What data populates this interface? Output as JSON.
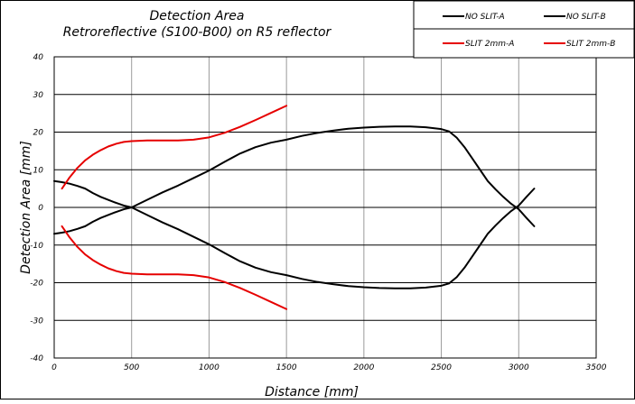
{
  "chart_data": {
    "type": "line",
    "title": "Detection Area",
    "subtitle": "Retroreflective (S100-B00) on R5 reflector",
    "xlabel": "Distance [mm]",
    "ylabel": "Detection Area [mm]",
    "xlim": [
      0,
      3500
    ],
    "ylim": [
      -40,
      40
    ],
    "x_ticks": [
      "0",
      "500",
      "1000",
      "1500",
      "2000",
      "2500",
      "3000",
      "3500"
    ],
    "y_ticks": [
      "40",
      "30",
      "20",
      "10",
      "0",
      "-10",
      "-20",
      "-30",
      "-40"
    ],
    "grid": true,
    "legend_position": "top-right",
    "series": [
      {
        "name": "NO SLIT-A",
        "color": "#000000",
        "x": [
          0,
          50,
          100,
          150,
          200,
          250,
          300,
          350,
          400,
          450,
          500,
          600,
          700,
          800,
          900,
          1000,
          1100,
          1200,
          1300,
          1400,
          1500,
          1600,
          1700,
          1800,
          1900,
          2000,
          2100,
          2200,
          2300,
          2400,
          2500,
          2550,
          2600,
          2650,
          2700,
          2750,
          2800,
          2850,
          2900,
          2950,
          3000,
          3050,
          3100
        ],
        "y": [
          7,
          6.7,
          6.3,
          5.7,
          5,
          3.8,
          2.8,
          2,
          1.2,
          0.5,
          0,
          2,
          4,
          5.8,
          7.8,
          9.8,
          12.1,
          14.3,
          16,
          17.2,
          18,
          19,
          19.8,
          20.4,
          20.9,
          21.2,
          21.4,
          21.5,
          21.5,
          21.3,
          20.8,
          20.2,
          18.5,
          16,
          13,
          10,
          7,
          4.8,
          2.8,
          1,
          -0.5,
          -2.8,
          -5
        ]
      },
      {
        "name": "NO SLIT-B",
        "color": "#000000",
        "x": [
          0,
          50,
          100,
          150,
          200,
          250,
          300,
          350,
          400,
          450,
          500,
          600,
          700,
          800,
          900,
          1000,
          1100,
          1200,
          1300,
          1400,
          1500,
          1600,
          1700,
          1800,
          1900,
          2000,
          2100,
          2200,
          2300,
          2400,
          2500,
          2550,
          2600,
          2650,
          2700,
          2750,
          2800,
          2850,
          2900,
          2950,
          3000,
          3050,
          3100
        ],
        "y": [
          -7,
          -6.7,
          -6.3,
          -5.7,
          -5,
          -3.8,
          -2.8,
          -2,
          -1.2,
          -0.5,
          0,
          -2,
          -4,
          -5.8,
          -7.8,
          -9.8,
          -12.1,
          -14.3,
          -16,
          -17.2,
          -18,
          -19,
          -19.8,
          -20.4,
          -20.9,
          -21.2,
          -21.4,
          -21.5,
          -21.5,
          -21.3,
          -20.8,
          -20.2,
          -18.5,
          -16,
          -13,
          -10,
          -7,
          -4.8,
          -2.8,
          -1,
          0.5,
          2.8,
          5
        ]
      },
      {
        "name": "SLIT 2mm-A",
        "color": "#e60000",
        "x": [
          50,
          100,
          150,
          200,
          250,
          300,
          350,
          400,
          450,
          500,
          600,
          700,
          800,
          900,
          1000,
          1100,
          1200,
          1300,
          1400,
          1500
        ],
        "y": [
          5,
          8,
          10.5,
          12.5,
          14,
          15.2,
          16.2,
          16.9,
          17.4,
          17.6,
          17.8,
          17.8,
          17.8,
          18,
          18.6,
          19.8,
          21.4,
          23.2,
          25.1,
          27
        ]
      },
      {
        "name": "SLIT 2mm-B",
        "color": "#e60000",
        "x": [
          50,
          100,
          150,
          200,
          250,
          300,
          350,
          400,
          450,
          500,
          600,
          700,
          800,
          900,
          1000,
          1100,
          1200,
          1300,
          1400,
          1500
        ],
        "y": [
          -5,
          -8,
          -10.5,
          -12.5,
          -14,
          -15.2,
          -16.2,
          -16.9,
          -17.4,
          -17.6,
          -17.8,
          -17.8,
          -17.8,
          -18,
          -18.6,
          -19.8,
          -21.4,
          -23.2,
          -25.1,
          -27
        ]
      }
    ]
  }
}
